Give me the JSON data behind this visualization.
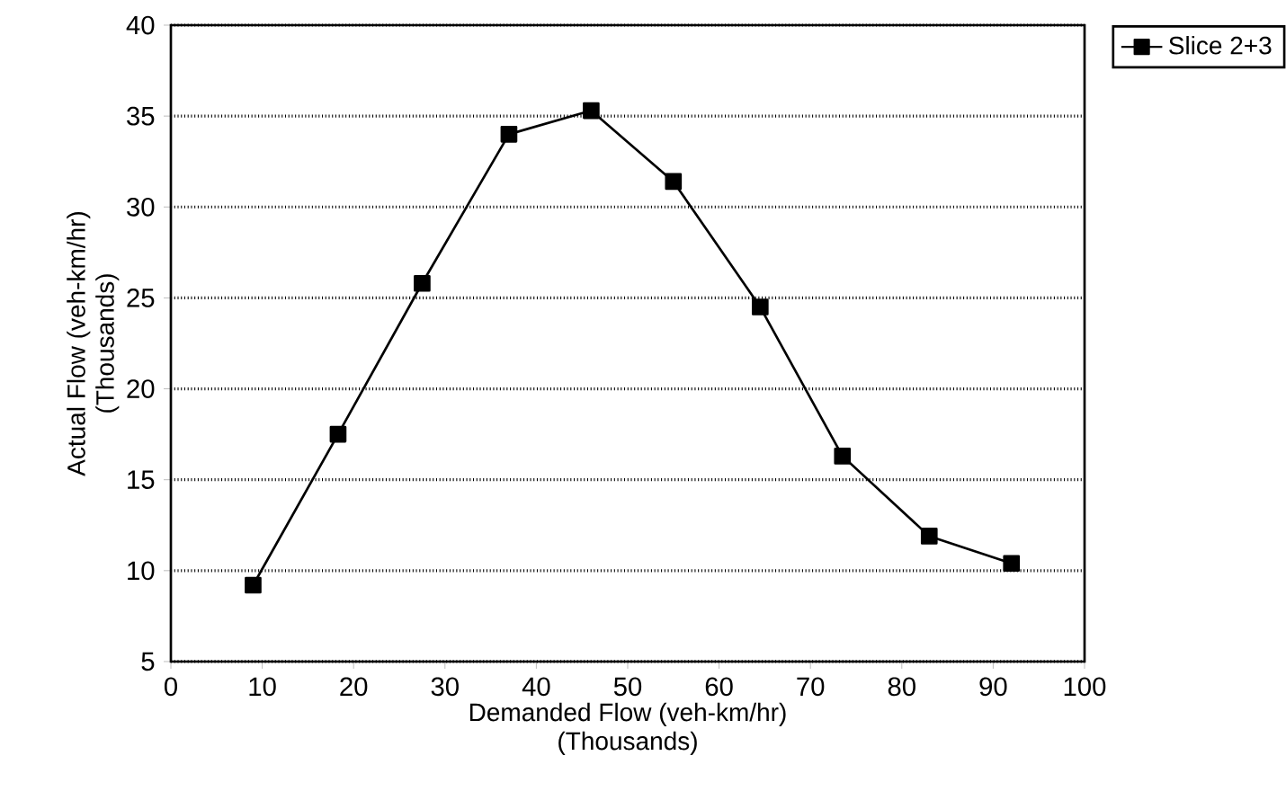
{
  "chart_data": {
    "type": "line",
    "xlabel": "Demanded Flow (veh-km/hr)\n(Thousands)",
    "ylabel": "Actual Flow  (veh-km/hr)\n(Thousands)",
    "x": [
      9,
      18.3,
      27.5,
      37,
      46,
      55,
      64.5,
      73.5,
      83,
      92
    ],
    "series": [
      {
        "name": "Slice 2+3",
        "color": "#000000",
        "values": [
          9.2,
          17.5,
          25.8,
          34,
          35.3,
          31.4,
          24.5,
          16.3,
          11.9,
          10.4
        ]
      }
    ],
    "xlim": [
      0,
      100
    ],
    "ylim": [
      5,
      40
    ],
    "xticks": [
      0,
      10,
      20,
      30,
      40,
      50,
      60,
      70,
      80,
      90,
      100
    ],
    "yticks": [
      5,
      10,
      15,
      20,
      25,
      30,
      35,
      40
    ],
    "grid": "y",
    "legend": "top right",
    "marker": "square",
    "line_style": "solid"
  }
}
